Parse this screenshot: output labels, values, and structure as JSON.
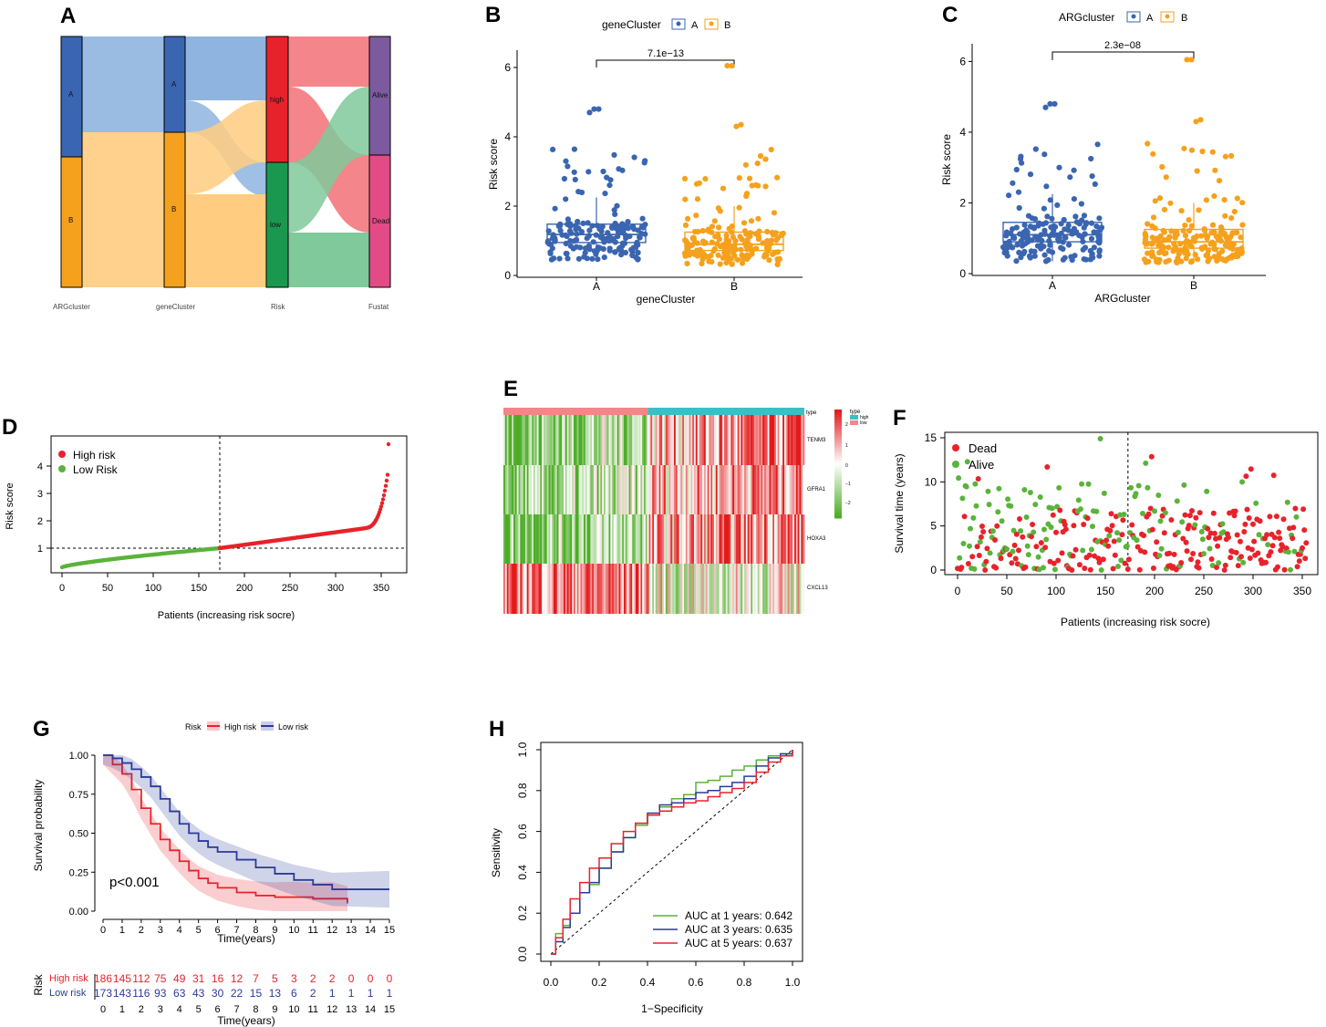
{
  "colors": {
    "blue": "#3a65b0",
    "orange": "#f5a11d",
    "red": "#e8222b",
    "green": "#5ab33b",
    "teal": "#3bbfc7",
    "pink": "#f4858a",
    "purple": "#7b5b9e",
    "magenta": "#e24b86",
    "darkgreen": "#1a9850",
    "navy": "#2b3a9a",
    "heatRed": "#e31a1c",
    "heatGreen": "#4dac26"
  },
  "panels": [
    "A",
    "B",
    "C",
    "D",
    "E",
    "F",
    "G",
    "H"
  ],
  "chart_data": [
    {
      "id": "A",
      "type": "sankey",
      "axes": [
        "ARGcluster",
        "geneCluster",
        "Risk",
        "Fustat"
      ],
      "nodes": [
        {
          "axis": "ARGcluster",
          "label": "A",
          "share": 0.5
        },
        {
          "axis": "ARGcluster",
          "label": "B",
          "share": 0.5
        },
        {
          "axis": "geneCluster",
          "label": "A",
          "share": 0.38
        },
        {
          "axis": "geneCluster",
          "label": "B",
          "share": 0.62
        },
        {
          "axis": "Risk",
          "label": "high",
          "share": 0.5
        },
        {
          "axis": "Risk",
          "label": "low",
          "share": 0.5
        },
        {
          "axis": "Fustat",
          "label": "Alive",
          "share": 0.48
        },
        {
          "axis": "Fustat",
          "label": "Dead",
          "share": 0.52
        }
      ]
    },
    {
      "id": "B",
      "type": "box-jitter",
      "legend_title": "geneCluster",
      "legend": [
        "A",
        "B"
      ],
      "xlabel": "geneCluster",
      "ylabel": "Risk score",
      "categories": [
        "A",
        "B"
      ],
      "pvalue": "7.1e−13",
      "ylim": [
        0,
        6.5
      ],
      "yticks": [
        0,
        2,
        4,
        6
      ],
      "boxes": [
        {
          "group": "A",
          "q1": 0.95,
          "median": 1.18,
          "q3": 1.48,
          "lo": 0.4,
          "hi": 2.25
        },
        {
          "group": "B",
          "q1": 0.72,
          "median": 0.9,
          "q3": 1.25,
          "lo": 0.3,
          "hi": 2.0
        }
      ],
      "outliers": {
        "A": [
          4.7,
          4.8,
          4.8,
          3.0
        ],
        "B": [
          6.05,
          6.05,
          4.3,
          4.35
        ]
      }
    },
    {
      "id": "C",
      "type": "box-jitter",
      "legend_title": "ARGcluster",
      "legend": [
        "A",
        "B"
      ],
      "xlabel": "ARGcluster",
      "ylabel": "Risk score",
      "categories": [
        "A",
        "B"
      ],
      "pvalue": "2.3e−08",
      "ylim": [
        0,
        6.5
      ],
      "yticks": [
        0,
        2,
        4,
        6
      ],
      "boxes": [
        {
          "group": "A",
          "q1": 0.9,
          "median": 1.1,
          "q3": 1.45,
          "lo": 0.35,
          "hi": 2.25
        },
        {
          "group": "B",
          "q1": 0.72,
          "median": 0.9,
          "q3": 1.25,
          "lo": 0.3,
          "hi": 2.0
        }
      ],
      "outliers": {
        "A": [
          4.7,
          4.8,
          4.8,
          3.0
        ],
        "B": [
          6.05,
          6.05,
          4.3,
          4.35
        ]
      }
    },
    {
      "id": "D",
      "type": "scatter",
      "xlabel": "Patients (increasing risk socre)",
      "ylabel": "Risk score",
      "legend": [
        "High risk",
        "Low Risk"
      ],
      "xlim": [
        0,
        360
      ],
      "ylim": [
        0.2,
        5
      ],
      "xticks": [
        0,
        50,
        100,
        150,
        200,
        250,
        300,
        350
      ],
      "yticks": [
        1,
        2,
        3,
        4
      ],
      "cutoff_x": 173,
      "cutoff_y": 1.0,
      "n": 359
    },
    {
      "id": "E",
      "type": "heatmap",
      "genes": [
        "TENM3",
        "GFRA1",
        "HOXA3",
        "CXCL13"
      ],
      "annotation_label": "type",
      "legend_title": "type",
      "legend": [
        "high",
        "low"
      ],
      "scale_ticks": [
        "2",
        "1",
        "0",
        "−1",
        "−2"
      ],
      "low_fraction": 0.48
    },
    {
      "id": "F",
      "type": "scatter",
      "xlabel": "Patients (increasing risk socre)",
      "ylabel": "Survival time (years)",
      "legend": [
        "Dead",
        "Alive"
      ],
      "xlim": [
        0,
        360
      ],
      "ylim": [
        0,
        15
      ],
      "xticks": [
        0,
        50,
        100,
        150,
        200,
        250,
        300,
        350
      ],
      "yticks": [
        0,
        5,
        10,
        15
      ],
      "cutoff_x": 173
    },
    {
      "id": "G",
      "type": "kaplan-meier",
      "legend_title": "Risk",
      "legend": [
        "High risk",
        "Low risk"
      ],
      "xlabel": "Time(years)",
      "ylabel": "Survival probability",
      "pvalue": "p<0.001",
      "xticks": [
        0,
        1,
        2,
        3,
        4,
        5,
        6,
        7,
        8,
        9,
        10,
        11,
        12,
        13,
        14,
        15
      ],
      "yticks": [
        "0.00",
        "0.25",
        "0.50",
        "0.75",
        "1.00"
      ],
      "series": [
        {
          "name": "High risk",
          "x": [
            0,
            0.5,
            1,
            1.5,
            2,
            2.5,
            3,
            3.5,
            4,
            4.5,
            5,
            5.5,
            6,
            7,
            8,
            9,
            10,
            11,
            12,
            12.8
          ],
          "y": [
            1.0,
            0.94,
            0.88,
            0.78,
            0.66,
            0.56,
            0.46,
            0.39,
            0.32,
            0.26,
            0.21,
            0.18,
            0.15,
            0.12,
            0.1,
            0.09,
            0.09,
            0.08,
            0.08,
            0.05
          ],
          "at_risk": [
            186,
            145,
            112,
            75,
            49,
            31,
            16,
            12,
            7,
            5,
            3,
            2,
            2,
            0,
            0,
            0
          ]
        },
        {
          "name": "Low risk",
          "x": [
            0,
            0.5,
            1,
            1.5,
            2,
            2.5,
            3,
            3.5,
            4,
            4.5,
            5,
            5.5,
            6,
            7,
            8,
            9,
            10,
            11,
            12,
            13,
            15
          ],
          "y": [
            1.0,
            0.98,
            0.95,
            0.91,
            0.86,
            0.8,
            0.72,
            0.64,
            0.56,
            0.5,
            0.45,
            0.41,
            0.38,
            0.33,
            0.28,
            0.24,
            0.2,
            0.17,
            0.14,
            0.14,
            0.14
          ],
          "at_risk": [
            173,
            143,
            116,
            93,
            63,
            43,
            30,
            22,
            15,
            13,
            6,
            2,
            1,
            1,
            1,
            1
          ]
        }
      ],
      "table_title": "Risk",
      "table_xlabel": "Time(years)"
    },
    {
      "id": "H",
      "type": "roc",
      "xlabel": "1−Specificity",
      "ylabel": "Sensitivity",
      "xticks": [
        "0.0",
        "0.2",
        "0.4",
        "0.6",
        "0.8",
        "1.0"
      ],
      "yticks": [
        "0.0",
        "0.2",
        "0.4",
        "0.6",
        "0.8",
        "1.0"
      ],
      "series": [
        {
          "name": "AUC at 1 years: 0.642",
          "x": [
            0,
            0.02,
            0.05,
            0.08,
            0.12,
            0.16,
            0.2,
            0.25,
            0.3,
            0.35,
            0.4,
            0.45,
            0.5,
            0.55,
            0.6,
            0.65,
            0.7,
            0.75,
            0.8,
            0.85,
            0.9,
            0.95,
            1
          ],
          "y": [
            0,
            0.1,
            0.14,
            0.2,
            0.3,
            0.34,
            0.42,
            0.5,
            0.57,
            0.63,
            0.68,
            0.72,
            0.76,
            0.78,
            0.84,
            0.85,
            0.87,
            0.9,
            0.92,
            0.95,
            0.97,
            0.98,
            1
          ]
        },
        {
          "name": "AUC at 3 years: 0.635",
          "x": [
            0,
            0.02,
            0.05,
            0.08,
            0.12,
            0.16,
            0.2,
            0.25,
            0.3,
            0.35,
            0.4,
            0.45,
            0.5,
            0.55,
            0.6,
            0.65,
            0.7,
            0.75,
            0.8,
            0.85,
            0.9,
            0.95,
            1
          ],
          "y": [
            0,
            0.06,
            0.13,
            0.2,
            0.3,
            0.35,
            0.42,
            0.5,
            0.57,
            0.64,
            0.69,
            0.73,
            0.74,
            0.76,
            0.79,
            0.8,
            0.82,
            0.84,
            0.87,
            0.92,
            0.96,
            0.98,
            1
          ]
        },
        {
          "name": "AUC at 5 years: 0.637",
          "x": [
            0,
            0.02,
            0.05,
            0.08,
            0.12,
            0.16,
            0.2,
            0.25,
            0.3,
            0.35,
            0.4,
            0.45,
            0.5,
            0.55,
            0.6,
            0.65,
            0.7,
            0.75,
            0.8,
            0.85,
            0.9,
            0.95,
            1
          ],
          "y": [
            0,
            0.08,
            0.17,
            0.27,
            0.35,
            0.42,
            0.47,
            0.54,
            0.6,
            0.64,
            0.68,
            0.7,
            0.72,
            0.74,
            0.75,
            0.77,
            0.79,
            0.81,
            0.84,
            0.89,
            0.94,
            0.97,
            1
          ]
        }
      ]
    }
  ]
}
